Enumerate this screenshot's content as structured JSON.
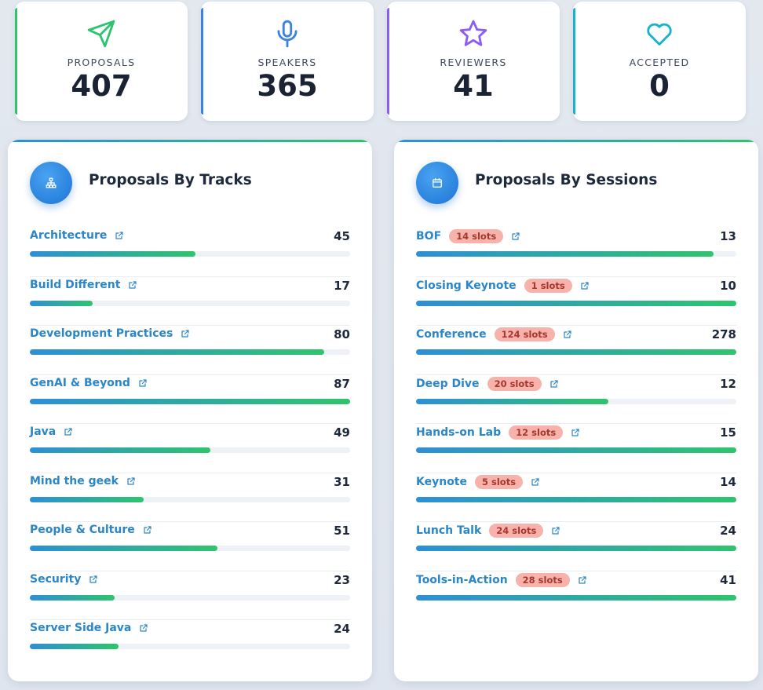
{
  "stats": [
    {
      "label": "PROPOSALS",
      "value": "407",
      "icon": "send-icon",
      "color": "#2ec46f"
    },
    {
      "label": "SPEAKERS",
      "value": "365",
      "icon": "microphone-icon",
      "color": "#3b82e6"
    },
    {
      "label": "REVIEWERS",
      "value": "41",
      "icon": "star-icon",
      "color": "#8b5cf6"
    },
    {
      "label": "ACCEPTED",
      "value": "0",
      "icon": "heart-icon",
      "color": "#17b3c9"
    }
  ],
  "tracks_panel": {
    "title": "Proposals By Tracks",
    "items": [
      {
        "label": "Architecture",
        "count": "45",
        "fill": 0.517
      },
      {
        "label": "Build Different",
        "count": "17",
        "fill": 0.195
      },
      {
        "label": "Development Practices",
        "count": "80",
        "fill": 0.92
      },
      {
        "label": "GenAI & Beyond",
        "count": "87",
        "fill": 1.0
      },
      {
        "label": "Java",
        "count": "49",
        "fill": 0.563
      },
      {
        "label": "Mind the geek",
        "count": "31",
        "fill": 0.356
      },
      {
        "label": "People & Culture",
        "count": "51",
        "fill": 0.586
      },
      {
        "label": "Security",
        "count": "23",
        "fill": 0.264
      },
      {
        "label": "Server Side Java",
        "count": "24",
        "fill": 0.276
      }
    ]
  },
  "sessions_panel": {
    "title": "Proposals By Sessions",
    "items": [
      {
        "label": "BOF",
        "slots": "14 slots",
        "count": "13",
        "fill": 0.93
      },
      {
        "label": "Closing Keynote",
        "slots": "1 slots",
        "count": "10",
        "fill": 1.0
      },
      {
        "label": "Conference",
        "slots": "124 slots",
        "count": "278",
        "fill": 1.0
      },
      {
        "label": "Deep Dive",
        "slots": "20 slots",
        "count": "12",
        "fill": 0.6
      },
      {
        "label": "Hands-on Lab",
        "slots": "12 slots",
        "count": "15",
        "fill": 1.0
      },
      {
        "label": "Keynote",
        "slots": "5 slots",
        "count": "14",
        "fill": 1.0
      },
      {
        "label": "Lunch Talk",
        "slots": "24 slots",
        "count": "24",
        "fill": 1.0
      },
      {
        "label": "Tools-in-Action",
        "slots": "28 slots",
        "count": "41",
        "fill": 1.0
      }
    ]
  }
}
